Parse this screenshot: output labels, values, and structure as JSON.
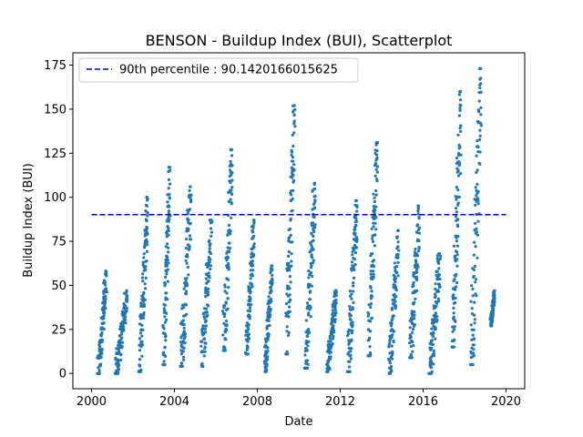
{
  "chart_data": {
    "type": "scatter",
    "title": "BENSON - Buildup Index (BUI), Scatterplot",
    "xlabel": "Date",
    "ylabel": "Buildup Index (BUI)",
    "xlim": [
      1999.1,
      2020.9
    ],
    "ylim": [
      -8.7,
      182
    ],
    "x_ticks": [
      2000,
      2004,
      2008,
      2012,
      2016,
      2020
    ],
    "x_tick_labels": [
      "2000",
      "2004",
      "2008",
      "2012",
      "2016",
      "2020"
    ],
    "y_ticks": [
      0,
      25,
      50,
      75,
      100,
      125,
      150,
      175
    ],
    "y_tick_labels": [
      "0",
      "25",
      "50",
      "75",
      "100",
      "125",
      "150",
      "175"
    ],
    "grid": false,
    "legend_position": "upper left",
    "reference_line": {
      "label": "90th percentile : 90.1420166015625",
      "value": 90.1420166015625,
      "x_range": [
        2000.0,
        2020.0
      ],
      "color": "#0000cc",
      "style": "dashed"
    },
    "series_color": "#1f77b4",
    "seasons": [
      {
        "start": 2000.3,
        "end": 2000.72,
        "min": 0,
        "max": 58
      },
      {
        "start": 2001.15,
        "end": 2001.72,
        "min": 0,
        "max": 47
      },
      {
        "start": 2002.3,
        "end": 2002.72,
        "min": 1,
        "max": 100
      },
      {
        "start": 2003.45,
        "end": 2003.78,
        "min": 5,
        "max": 117
      },
      {
        "start": 2004.3,
        "end": 2004.8,
        "min": 4,
        "max": 106
      },
      {
        "start": 2005.3,
        "end": 2005.8,
        "min": 4,
        "max": 87
      },
      {
        "start": 2006.35,
        "end": 2006.8,
        "min": 13,
        "max": 127
      },
      {
        "start": 2007.45,
        "end": 2007.85,
        "min": 11,
        "max": 87
      },
      {
        "start": 2008.35,
        "end": 2008.72,
        "min": 1,
        "max": 61
      },
      {
        "start": 2009.38,
        "end": 2009.8,
        "min": 11,
        "max": 152
      },
      {
        "start": 2010.3,
        "end": 2010.8,
        "min": 3,
        "max": 108
      },
      {
        "start": 2011.35,
        "end": 2011.82,
        "min": 1,
        "max": 47
      },
      {
        "start": 2012.35,
        "end": 2012.82,
        "min": 1,
        "max": 98
      },
      {
        "start": 2013.35,
        "end": 2013.8,
        "min": 10,
        "max": 131
      },
      {
        "start": 2014.35,
        "end": 2014.82,
        "min": 0,
        "max": 81
      },
      {
        "start": 2015.35,
        "end": 2015.82,
        "min": 9,
        "max": 95
      },
      {
        "start": 2016.3,
        "end": 2016.82,
        "min": 0,
        "max": 68
      },
      {
        "start": 2017.4,
        "end": 2017.82,
        "min": 15,
        "max": 160
      },
      {
        "start": 2018.3,
        "end": 2018.8,
        "min": 5,
        "max": 173
      },
      {
        "start": 2019.25,
        "end": 2019.45,
        "min": 27,
        "max": 47
      }
    ]
  }
}
